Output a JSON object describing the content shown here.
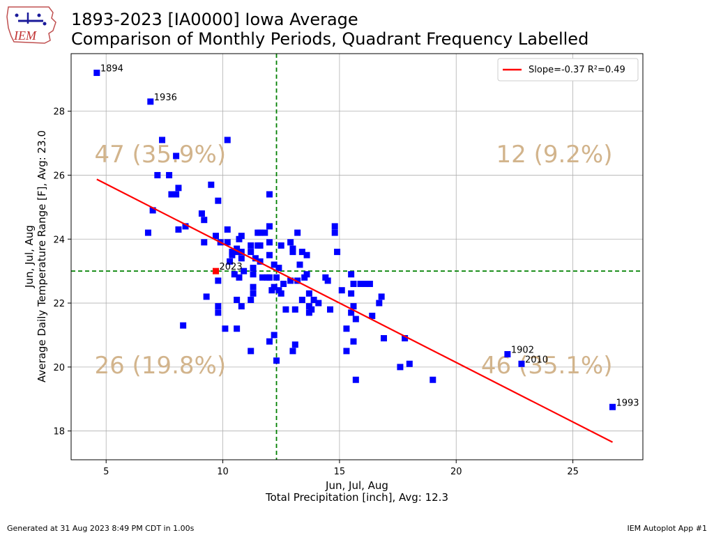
{
  "titles": {
    "line1": "1893-2023 [IA0000] Iowa Average",
    "line2": "Comparison of Monthly Periods, Quadrant Frequency Labelled"
  },
  "logo": {
    "text": "IEM"
  },
  "footer": {
    "left": "Generated at 31 Aug 2023 8:49 PM CDT in 1.00s",
    "right": "IEM Autoplot App #1"
  },
  "colors": {
    "points": "#0000ff",
    "highlight": "#ff0000",
    "regression": "#ff0000",
    "avg_lines": "#008000",
    "quadrant_text": "#d2b48c",
    "grid": "#b0b0b0"
  },
  "chart_data": {
    "type": "scatter",
    "title": "1893-2023 [IA0000] Iowa Average\nComparison of Monthly Periods, Quadrant Frequency Labelled",
    "xlabel_line1": "Jun, Jul, Aug",
    "xlabel_line2": "Total Precipitation [inch], Avg: 12.3",
    "ylabel_line1": "Jun, Jul, Aug",
    "ylabel_line2": "Average Daily Temperature Range [F], Avg: 23.0",
    "xlim": [
      3.5,
      28.0
    ],
    "ylim": [
      17.1,
      29.8
    ],
    "xticks": [
      "5",
      "10",
      "15",
      "20",
      "25"
    ],
    "yticks": [
      "18",
      "20",
      "22",
      "24",
      "26",
      "28"
    ],
    "grid": true,
    "x_avg": 12.3,
    "y_avg": 23.0,
    "legend": {
      "position": "upper right",
      "label": "Slope=-0.37 R²=0.49"
    },
    "regression": {
      "x": [
        4.6,
        26.7
      ],
      "y": [
        25.87,
        17.65
      ]
    },
    "quadrant_labels": [
      {
        "label": "47 (35.9%)",
        "quadrant": "upper-left"
      },
      {
        "label": "12 (9.2%)",
        "quadrant": "upper-right"
      },
      {
        "label": "26 (19.8%)",
        "quadrant": "lower-left"
      },
      {
        "label": "46 (35.1%)",
        "quadrant": "lower-right"
      }
    ],
    "highlight": {
      "year": "2023",
      "x": 9.7,
      "y": 23.0
    },
    "labeled_points": [
      {
        "year": "1894",
        "x": 4.6,
        "y": 29.2
      },
      {
        "year": "1936",
        "x": 6.9,
        "y": 28.3
      },
      {
        "year": "1902",
        "x": 22.2,
        "y": 20.4
      },
      {
        "year": "2010",
        "x": 22.8,
        "y": 20.1
      },
      {
        "year": "1993",
        "x": 26.7,
        "y": 18.75
      }
    ],
    "points": [
      [
        7.4,
        27.1
      ],
      [
        10.2,
        27.1
      ],
      [
        8.0,
        26.6
      ],
      [
        7.2,
        26.0
      ],
      [
        7.7,
        26.0
      ],
      [
        9.5,
        25.7
      ],
      [
        8.1,
        25.6
      ],
      [
        7.8,
        25.4
      ],
      [
        8.0,
        25.4
      ],
      [
        12.0,
        25.4
      ],
      [
        9.8,
        25.2
      ],
      [
        7.0,
        24.9
      ],
      [
        9.1,
        24.8
      ],
      [
        9.2,
        24.6
      ],
      [
        8.4,
        24.4
      ],
      [
        8.1,
        24.3
      ],
      [
        10.2,
        24.3
      ],
      [
        14.8,
        24.4
      ],
      [
        14.8,
        24.2
      ],
      [
        12.0,
        24.4
      ],
      [
        6.8,
        24.2
      ],
      [
        9.7,
        24.1
      ],
      [
        10.8,
        24.1
      ],
      [
        11.5,
        24.2
      ],
      [
        11.6,
        24.2
      ],
      [
        11.8,
        24.2
      ],
      [
        13.2,
        24.2
      ],
      [
        9.2,
        23.9
      ],
      [
        9.9,
        23.9
      ],
      [
        10.2,
        23.9
      ],
      [
        10.7,
        24.0
      ],
      [
        12.0,
        23.9
      ],
      [
        11.2,
        23.8
      ],
      [
        11.5,
        23.8
      ],
      [
        12.5,
        23.8
      ],
      [
        12.9,
        23.9
      ],
      [
        13.0,
        23.7
      ],
      [
        10.6,
        23.7
      ],
      [
        11.6,
        23.8
      ],
      [
        13.0,
        23.6
      ],
      [
        10.4,
        23.6
      ],
      [
        10.8,
        23.6
      ],
      [
        11.2,
        23.6
      ],
      [
        13.4,
        23.6
      ],
      [
        13.6,
        23.5
      ],
      [
        14.9,
        23.6
      ],
      [
        12.0,
        23.5
      ],
      [
        10.4,
        23.5
      ],
      [
        10.6,
        23.6
      ],
      [
        11.4,
        23.4
      ],
      [
        10.8,
        23.4
      ],
      [
        11.6,
        23.3
      ],
      [
        10.3,
        23.3
      ],
      [
        13.3,
        23.2
      ],
      [
        12.2,
        23.2
      ],
      [
        12.4,
        23.1
      ],
      [
        11.3,
        23.1
      ],
      [
        10.5,
        22.9
      ],
      [
        10.9,
        23.0
      ],
      [
        11.3,
        22.9
      ],
      [
        13.6,
        22.9
      ],
      [
        15.5,
        22.9
      ],
      [
        11.7,
        22.8
      ],
      [
        11.9,
        22.8
      ],
      [
        12.0,
        22.8
      ],
      [
        12.3,
        22.8
      ],
      [
        13.5,
        22.8
      ],
      [
        14.4,
        22.8
      ],
      [
        10.7,
        22.8
      ],
      [
        9.8,
        22.7
      ],
      [
        12.9,
        22.7
      ],
      [
        13.2,
        22.7
      ],
      [
        14.5,
        22.7
      ],
      [
        15.6,
        22.6
      ],
      [
        12.6,
        22.6
      ],
      [
        12.2,
        22.5
      ],
      [
        15.9,
        22.6
      ],
      [
        16.1,
        22.6
      ],
      [
        16.3,
        22.6
      ],
      [
        11.3,
        22.5
      ],
      [
        12.1,
        22.4
      ],
      [
        15.1,
        22.4
      ],
      [
        12.4,
        22.4
      ],
      [
        13.7,
        22.3
      ],
      [
        11.3,
        22.3
      ],
      [
        12.5,
        22.3
      ],
      [
        15.5,
        22.3
      ],
      [
        9.3,
        22.2
      ],
      [
        16.8,
        22.2
      ],
      [
        10.6,
        22.1
      ],
      [
        11.2,
        22.1
      ],
      [
        13.4,
        22.1
      ],
      [
        13.9,
        22.1
      ],
      [
        14.1,
        22.0
      ],
      [
        16.7,
        22.0
      ],
      [
        15.6,
        21.9
      ],
      [
        9.8,
        21.9
      ],
      [
        10.8,
        21.9
      ],
      [
        12.7,
        21.8
      ],
      [
        13.7,
        21.9
      ],
      [
        14.6,
        21.8
      ],
      [
        13.1,
        21.8
      ],
      [
        13.8,
        21.8
      ],
      [
        9.8,
        21.7
      ],
      [
        13.7,
        21.7
      ],
      [
        15.5,
        21.7
      ],
      [
        16.4,
        21.6
      ],
      [
        15.7,
        21.5
      ],
      [
        8.3,
        21.3
      ],
      [
        15.3,
        21.2
      ],
      [
        10.1,
        21.2
      ],
      [
        10.6,
        21.2
      ],
      [
        12.2,
        21.0
      ],
      [
        17.8,
        20.9
      ],
      [
        16.9,
        20.9
      ],
      [
        15.6,
        20.8
      ],
      [
        12.0,
        20.8
      ],
      [
        13.1,
        20.7
      ],
      [
        13.0,
        20.5
      ],
      [
        11.2,
        20.5
      ],
      [
        15.3,
        20.5
      ],
      [
        12.3,
        20.2
      ],
      [
        18.0,
        20.1
      ],
      [
        17.6,
        20.0
      ],
      [
        19.0,
        19.6
      ],
      [
        15.7,
        19.6
      ]
    ]
  }
}
